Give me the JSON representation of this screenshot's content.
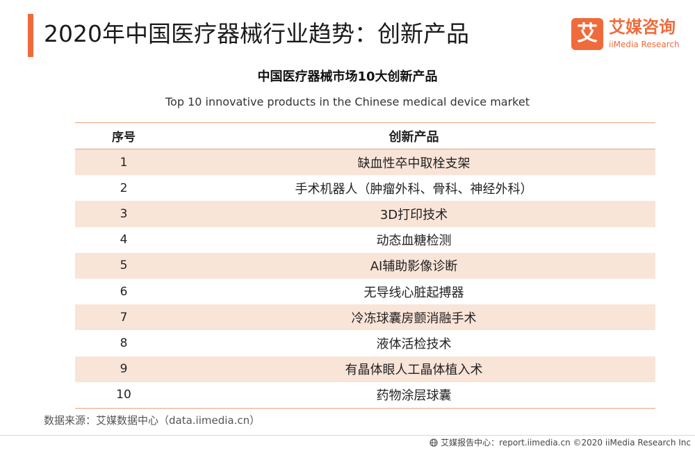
{
  "header": {
    "title": "2020年中国医疗器械行业趋势：创新产品",
    "accent_color": "#ef6b3c"
  },
  "logo": {
    "mark": "艾",
    "name_cn": "艾媒咨询",
    "name_en": "iiMedia Research"
  },
  "table": {
    "title": "中国医疗器械市场10大创新产品",
    "subtitle": "Top 10 innovative products in the Chinese medical device market",
    "columns": [
      "序号",
      "创新产品"
    ],
    "rows": [
      {
        "no": "1",
        "product": "缺血性卒中取栓支架"
      },
      {
        "no": "2",
        "product": "手术机器人（肿瘤外科、骨科、神经外科）"
      },
      {
        "no": "3",
        "product": "3D打印技术"
      },
      {
        "no": "4",
        "product": "动态血糖检测"
      },
      {
        "no": "5",
        "product": "AI辅助影像诊断"
      },
      {
        "no": "6",
        "product": "无导线心脏起搏器"
      },
      {
        "no": "7",
        "product": "冷冻球囊房颤消融手术"
      },
      {
        "no": "8",
        "product": "液体活检技术"
      },
      {
        "no": "9",
        "product": "有晶体眼人工晶体植入术"
      },
      {
        "no": "10",
        "product": "药物涂层球囊"
      }
    ],
    "shade_color": "#f9e4d8"
  },
  "source": "数据来源：艾媒数据中心（data.iimedia.cn）",
  "footer": {
    "text": "艾媒报告中心：report.iimedia.cn  ©2020  iiMedia Research  Inc"
  }
}
